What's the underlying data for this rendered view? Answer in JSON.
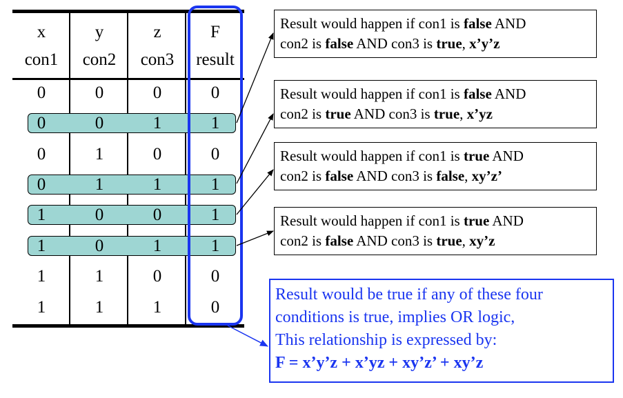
{
  "table": {
    "headers": [
      {
        "var": "x",
        "name": "con1"
      },
      {
        "var": "y",
        "name": "con2"
      },
      {
        "var": "z",
        "name": "con3"
      },
      {
        "var": "F",
        "name": "result"
      }
    ],
    "rows": [
      {
        "cells": [
          "0",
          "0",
          "0",
          "0"
        ],
        "highlighted": false
      },
      {
        "cells": [
          "0",
          "0",
          "1",
          "1"
        ],
        "highlighted": true
      },
      {
        "cells": [
          "0",
          "1",
          "0",
          "0"
        ],
        "highlighted": false
      },
      {
        "cells": [
          "0",
          "1",
          "1",
          "1"
        ],
        "highlighted": true
      },
      {
        "cells": [
          "1",
          "0",
          "0",
          "1"
        ],
        "highlighted": true
      },
      {
        "cells": [
          "1",
          "0",
          "1",
          "1"
        ],
        "highlighted": true
      },
      {
        "cells": [
          "1",
          "1",
          "0",
          "0"
        ],
        "highlighted": false
      },
      {
        "cells": [
          "1",
          "1",
          "1",
          "0"
        ],
        "highlighted": false
      }
    ]
  },
  "callouts": [
    {
      "line1_pre": "Result would happen if con1 is ",
      "line1_bold": "false",
      "line1_post": " AND",
      "line2_pre": "con2 is ",
      "line2_bold1": "false",
      "line2_mid": " AND con3 is ",
      "line2_bold2": "true",
      "line2_sep": ", ",
      "term": "x’y’z"
    },
    {
      "line1_pre": "Result would happen if con1 is ",
      "line1_bold": "false",
      "line1_post": " AND",
      "line2_pre": "con2 is ",
      "line2_bold1": "true",
      "line2_mid": " AND con3 is ",
      "line2_bold2": "true",
      "line2_sep": ", ",
      "term": "x’yz"
    },
    {
      "line1_pre": "Result would happen if con1 is ",
      "line1_bold": "true",
      "line1_post": " AND",
      "line2_pre": "con2 is ",
      "line2_bold1": "false",
      "line2_mid": " AND con3 is ",
      "line2_bold2": "false",
      "line2_sep": ", ",
      "term": "xy’z’"
    },
    {
      "line1_pre": "Result would happen if con1 is ",
      "line1_bold": "true",
      "line1_post": " AND",
      "line2_pre": "con2 is ",
      "line2_bold1": "false",
      "line2_mid": " AND con3 is ",
      "line2_bold2": "true",
      "line2_sep": ", ",
      "term": "xy’z"
    }
  ],
  "summary": {
    "lines": [
      "Result would be true if any of these four",
      "conditions is true, implies OR logic,",
      "This relationship is expressed by:"
    ],
    "equation": "F = x’y’z + x’yz + xy’z’ + xy’z"
  },
  "colors": {
    "highlight_fill": "#9ed6d3",
    "accent_blue": "#1a35f0"
  }
}
